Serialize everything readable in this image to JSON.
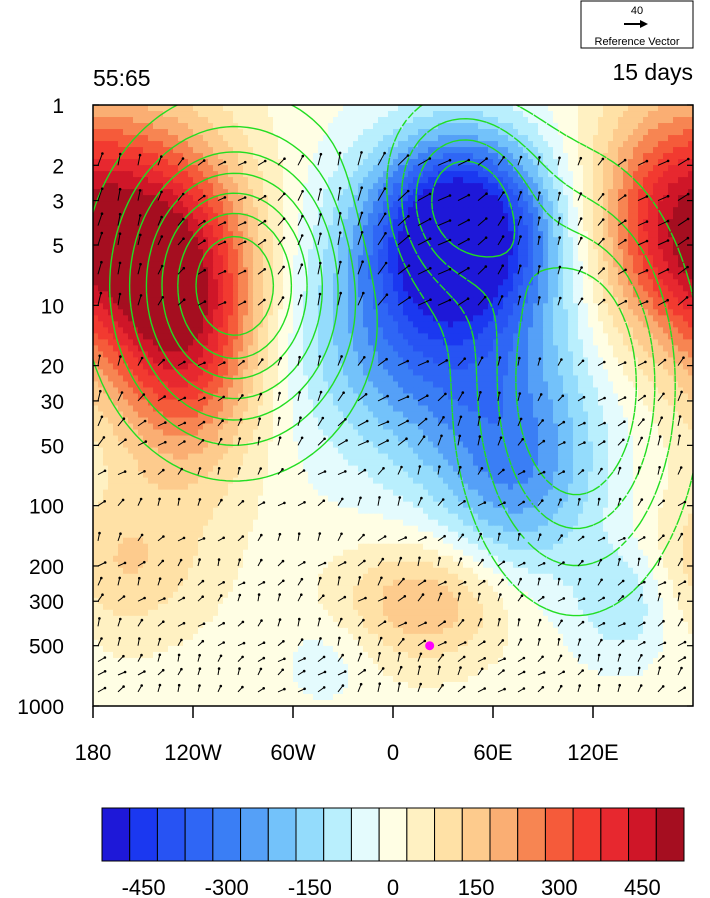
{
  "chart_data": {
    "type": "heatmap",
    "title_left": "55:65",
    "title_right": "15 days",
    "reference_vector": {
      "value": "40",
      "label": "Reference Vector"
    },
    "x_ticks": [
      "180",
      "120W",
      "60W",
      "0",
      "60E",
      "120E"
    ],
    "x_tick_lon": [
      -180,
      -120,
      -60,
      0,
      60,
      120
    ],
    "xlim": [
      -180,
      180
    ],
    "y_ticks": [
      "1",
      "2",
      "3",
      "5",
      "10",
      "20",
      "30",
      "50",
      "100",
      "200",
      "300",
      "500",
      "1000"
    ],
    "y_tick_values": [
      1,
      2,
      3,
      5,
      10,
      20,
      30,
      50,
      100,
      200,
      300,
      500,
      1000
    ],
    "ylim": [
      1000,
      1
    ],
    "y_scale": "log",
    "colorbar": {
      "levels": [
        -525,
        -475,
        -425,
        -375,
        -325,
        -275,
        -225,
        -175,
        -125,
        -75,
        -25,
        25,
        75,
        125,
        175,
        225,
        275,
        325,
        375,
        425,
        475,
        525
      ],
      "labels": [
        "-450",
        "-300",
        "-150",
        "0",
        "150",
        "300",
        "450"
      ],
      "label_values": [
        -450,
        -300,
        -150,
        0,
        150,
        300,
        450
      ],
      "colors": [
        "#1e18d8",
        "#1b38f0",
        "#2753f3",
        "#2f66f5",
        "#3a7ef5",
        "#55a0f7",
        "#73c2fa",
        "#94dcfc",
        "#b9effd",
        "#e4fbfd",
        "#fffee4",
        "#fff1c2",
        "#ffe1a6",
        "#fdcb8d",
        "#faae73",
        "#f78552",
        "#f55b3a",
        "#f23a30",
        "#e7282f",
        "#cf1628",
        "#a50e20"
      ]
    },
    "marker": {
      "lon": 22,
      "lev": 500,
      "color": "#ff00ff"
    },
    "anomaly_centers": [
      {
        "lon": 40,
        "lev": 4,
        "value": -540,
        "slon": 38,
        "slev": 0.75
      },
      {
        "lon": 25,
        "lev": 15,
        "value": -300,
        "slon": 55,
        "slev": 1.0
      },
      {
        "lon": 75,
        "lev": 70,
        "value": -230,
        "slon": 35,
        "slev": 0.85
      },
      {
        "lon": -125,
        "lev": 10,
        "value": 480,
        "slon": 32,
        "slev": 1.2
      },
      {
        "lon": 175,
        "lev": 4,
        "value": 460,
        "slon": 38,
        "slev": 1.0
      },
      {
        "lon": -165,
        "lev": 200,
        "value": 120,
        "slon": 35,
        "slev": 0.6
      },
      {
        "lon": 20,
        "lev": 300,
        "value": 180,
        "slon": 35,
        "slev": 0.5
      },
      {
        "lon": -40,
        "lev": 600,
        "value": -60,
        "slon": 18,
        "slev": 0.35
      },
      {
        "lon": 140,
        "lev": 300,
        "value": -130,
        "slon": 22,
        "slev": 0.5
      }
    ]
  }
}
